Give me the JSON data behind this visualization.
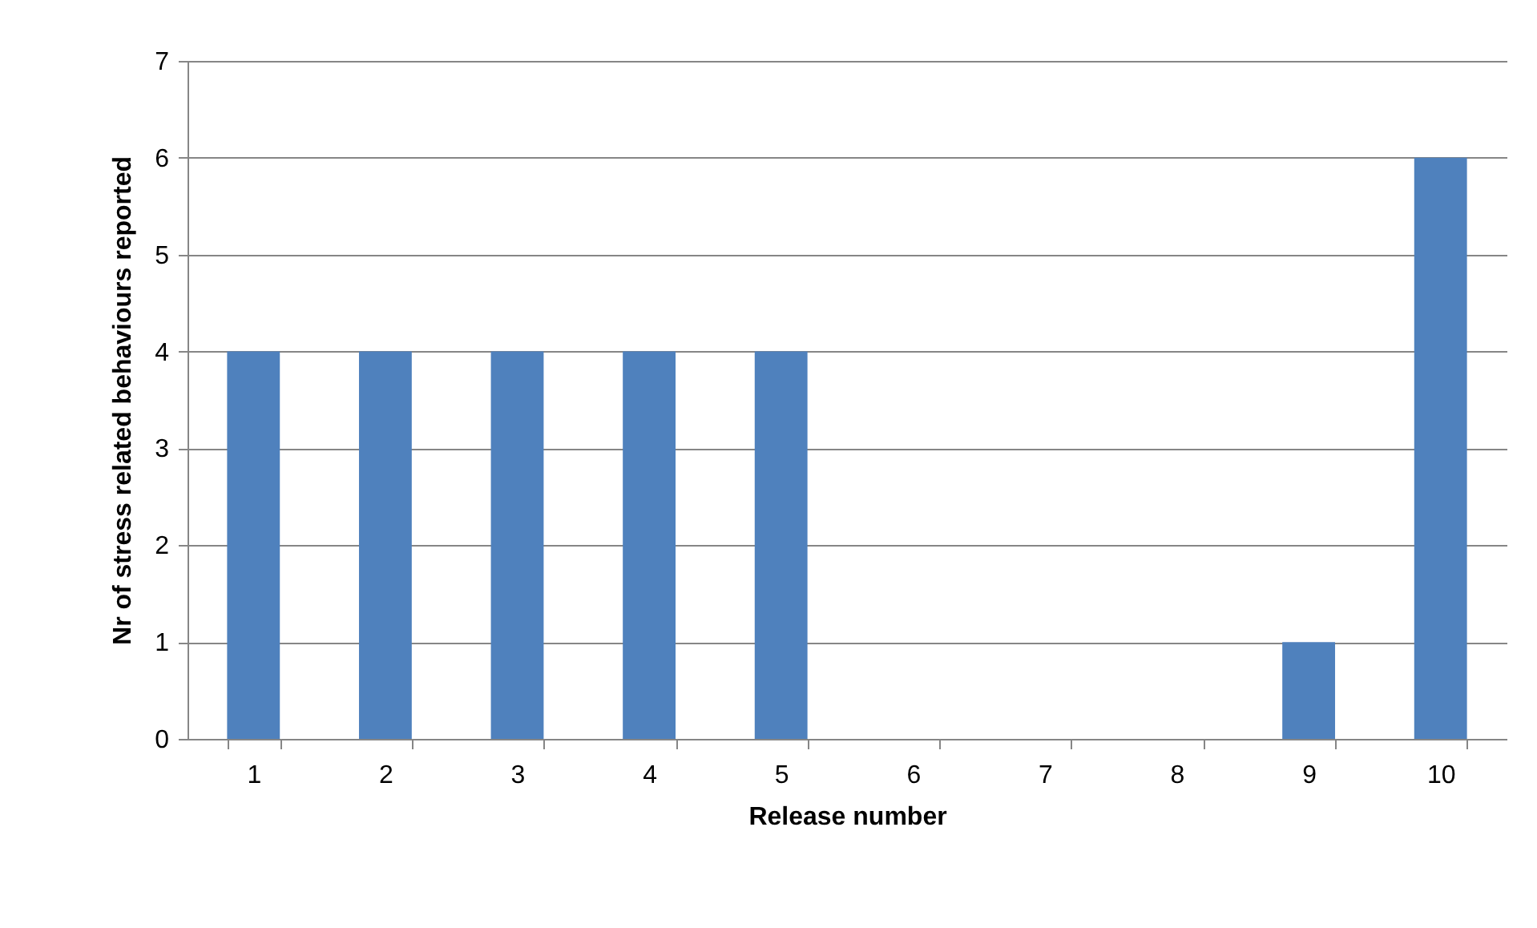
{
  "chart_data": {
    "type": "bar",
    "xlabel": "Release number",
    "ylabel": "Nr of stress related behaviours reported",
    "categories": [
      "1",
      "2",
      "3",
      "4",
      "5",
      "6",
      "7",
      "8",
      "9",
      "10"
    ],
    "values": [
      4,
      4,
      4,
      4,
      4,
      0,
      0,
      0,
      1,
      6
    ],
    "color": "#4f81bd",
    "ylim": [
      0,
      7
    ],
    "yticks": [
      0,
      1,
      2,
      3,
      4,
      5,
      6,
      7
    ],
    "grid": "y"
  }
}
